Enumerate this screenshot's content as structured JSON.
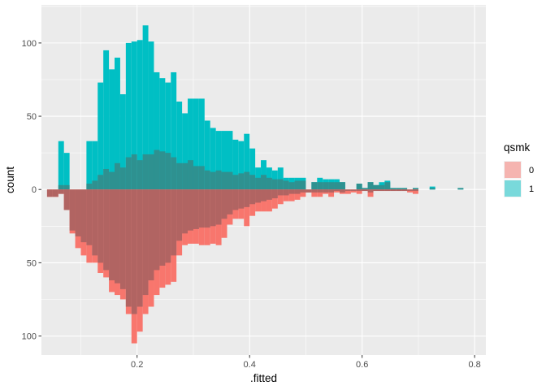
{
  "chart_data": {
    "type": "bar",
    "subtype": "mirrored-histogram",
    "title": "",
    "xlabel": ".fitted",
    "ylabel": "count",
    "xlim": [
      0.03,
      0.82
    ],
    "ylim": [
      -113,
      126
    ],
    "x_ticks": [
      0.2,
      0.4,
      0.6,
      0.8
    ],
    "x_tick_labels": [
      "0.2",
      "0.4",
      "0.6",
      "0.8"
    ],
    "y_ticks": [
      100,
      50,
      0,
      -50,
      -100
    ],
    "y_tick_labels": [
      "100",
      "50",
      "0",
      "50",
      "100"
    ],
    "grid": true,
    "bin_width": 0.01,
    "legend": {
      "title": "qsmk",
      "placement": "right",
      "entries": [
        {
          "label": "0",
          "color": "#F8766D"
        },
        {
          "label": "1",
          "color": "#00BFC4"
        }
      ]
    },
    "series": [
      {
        "name": "1",
        "direction": "up",
        "color": "#00BFC4",
        "bin_centers": [
          0.045,
          0.055,
          0.065,
          0.075,
          0.085,
          0.095,
          0.105,
          0.115,
          0.125,
          0.135,
          0.145,
          0.155,
          0.165,
          0.175,
          0.185,
          0.195,
          0.205,
          0.215,
          0.225,
          0.235,
          0.245,
          0.255,
          0.265,
          0.275,
          0.285,
          0.295,
          0.305,
          0.315,
          0.325,
          0.335,
          0.345,
          0.355,
          0.365,
          0.375,
          0.385,
          0.395,
          0.405,
          0.415,
          0.425,
          0.435,
          0.445,
          0.455,
          0.465,
          0.475,
          0.485,
          0.495,
          0.505,
          0.515,
          0.525,
          0.535,
          0.545,
          0.555,
          0.565,
          0.575,
          0.585,
          0.595,
          0.605,
          0.615,
          0.625,
          0.635,
          0.645,
          0.655,
          0.665,
          0.675,
          0.685,
          0.695,
          0.705,
          0.715,
          0.725,
          0.735,
          0.745,
          0.755,
          0.765,
          0.775,
          0.785
        ],
        "values": [
          0,
          0,
          33,
          25,
          0,
          0,
          0,
          33,
          33,
          73,
          95,
          82,
          90,
          65,
          100,
          101,
          102,
          112,
          101,
          80,
          76,
          73,
          80,
          60,
          52,
          62,
          62,
          62,
          47,
          42,
          40,
          40,
          40,
          34,
          33,
          38,
          28,
          15,
          20,
          15,
          13,
          15,
          8,
          8,
          8,
          8,
          0,
          5,
          8,
          7,
          7,
          7,
          5,
          0,
          0,
          4,
          1,
          5,
          3,
          5,
          6,
          1,
          1,
          1,
          0,
          1,
          0,
          0,
          2,
          0,
          0,
          0,
          0,
          1,
          0
        ]
      },
      {
        "name": "overlap",
        "direction": "up",
        "color": "#2E9190",
        "bin_centers": [
          0.045,
          0.055,
          0.065,
          0.075,
          0.085,
          0.095,
          0.105,
          0.115,
          0.125,
          0.135,
          0.145,
          0.155,
          0.165,
          0.175,
          0.185,
          0.195,
          0.205,
          0.215,
          0.225,
          0.235,
          0.245,
          0.255,
          0.265,
          0.275,
          0.285,
          0.295,
          0.305,
          0.315,
          0.325,
          0.335,
          0.345,
          0.355,
          0.365,
          0.375,
          0.385,
          0.395,
          0.405,
          0.415,
          0.425,
          0.435,
          0.445,
          0.455,
          0.465,
          0.475,
          0.485,
          0.495,
          0.505,
          0.515,
          0.525,
          0.535,
          0.545,
          0.555,
          0.565,
          0.575,
          0.585,
          0.595,
          0.605,
          0.615,
          0.625,
          0.635,
          0.645,
          0.655,
          0.665,
          0.675,
          0.685,
          0.695,
          0.705,
          0.715,
          0.725,
          0.735,
          0.745,
          0.755,
          0.765,
          0.775,
          0.785
        ],
        "values": [
          0,
          0,
          3,
          3,
          0,
          0,
          0,
          4,
          6,
          10,
          14,
          12,
          18,
          15,
          22,
          24,
          20,
          24,
          24,
          27,
          26,
          25,
          22,
          18,
          18,
          20,
          16,
          16,
          13,
          12,
          13,
          12,
          12,
          10,
          11,
          12,
          10,
          8,
          10,
          8,
          7,
          7,
          6,
          5,
          6,
          6,
          0,
          5,
          5,
          5,
          5,
          5,
          5,
          0,
          0,
          4,
          1,
          5,
          3,
          3,
          5,
          1,
          1,
          1,
          0,
          1,
          0,
          0,
          1,
          0,
          0,
          0,
          0,
          1,
          0
        ]
      },
      {
        "name": "0",
        "direction": "down",
        "color": "#F8766D",
        "bin_centers": [
          0.045,
          0.055,
          0.065,
          0.075,
          0.085,
          0.095,
          0.105,
          0.115,
          0.125,
          0.135,
          0.145,
          0.155,
          0.165,
          0.175,
          0.185,
          0.195,
          0.205,
          0.215,
          0.225,
          0.235,
          0.245,
          0.255,
          0.265,
          0.275,
          0.285,
          0.295,
          0.305,
          0.315,
          0.325,
          0.335,
          0.345,
          0.355,
          0.365,
          0.375,
          0.385,
          0.395,
          0.405,
          0.415,
          0.425,
          0.435,
          0.445,
          0.455,
          0.465,
          0.475,
          0.485,
          0.495,
          0.505,
          0.515,
          0.525,
          0.535,
          0.545,
          0.555,
          0.565,
          0.575,
          0.585,
          0.595,
          0.605,
          0.615,
          0.625,
          0.635,
          0.645,
          0.655,
          0.665,
          0.675,
          0.685,
          0.695,
          0.705,
          0.715,
          0.725,
          0.735,
          0.745,
          0.755,
          0.765,
          0.775,
          0.785
        ],
        "values": [
          5,
          5,
          3,
          14,
          30,
          40,
          45,
          50,
          50,
          57,
          60,
          70,
          72,
          75,
          85,
          105,
          97,
          85,
          80,
          72,
          67,
          65,
          63,
          45,
          38,
          37,
          37,
          38,
          38,
          37,
          38,
          33,
          24,
          20,
          20,
          25,
          18,
          15,
          15,
          15,
          13,
          10,
          8,
          8,
          7,
          5,
          2,
          5,
          5,
          3,
          5,
          2,
          3,
          3,
          2,
          3,
          1,
          5,
          1,
          1,
          1,
          1,
          1,
          1,
          2,
          3,
          0,
          0,
          0,
          0,
          0,
          0,
          0,
          0,
          0
        ]
      },
      {
        "name": "overlap-below",
        "direction": "down",
        "color": "#B16462",
        "bin_centers": [
          0.045,
          0.055,
          0.065,
          0.075,
          0.085,
          0.095,
          0.105,
          0.115,
          0.125,
          0.135,
          0.145,
          0.155,
          0.165,
          0.175,
          0.185,
          0.195,
          0.205,
          0.215,
          0.225,
          0.235,
          0.245,
          0.255,
          0.265,
          0.275,
          0.285,
          0.295,
          0.305,
          0.315,
          0.325,
          0.335,
          0.345,
          0.355,
          0.365,
          0.375,
          0.385,
          0.395,
          0.405,
          0.415,
          0.425,
          0.435,
          0.445,
          0.455,
          0.465,
          0.475,
          0.485,
          0.495,
          0.505,
          0.515,
          0.525,
          0.535,
          0.545,
          0.555,
          0.565,
          0.575,
          0.585,
          0.595,
          0.605,
          0.615,
          0.625,
          0.635,
          0.645,
          0.655,
          0.665,
          0.675,
          0.685,
          0.695,
          0.705,
          0.715,
          0.725,
          0.735,
          0.745,
          0.755,
          0.765,
          0.775,
          0.785
        ],
        "values": [
          5,
          5,
          3,
          14,
          28,
          32,
          36,
          38,
          45,
          50,
          55,
          62,
          64,
          68,
          80,
          85,
          80,
          72,
          62,
          55,
          52,
          50,
          45,
          35,
          30,
          28,
          27,
          26,
          26,
          25,
          24,
          20,
          17,
          14,
          13,
          12,
          10,
          9,
          8,
          7,
          6,
          4,
          4,
          3,
          3,
          2,
          2,
          2,
          2,
          2,
          2,
          1,
          2,
          1,
          1,
          1,
          1,
          2,
          1,
          1,
          1,
          1,
          1,
          1,
          1,
          1,
          0,
          0,
          0,
          0,
          0,
          0,
          0,
          0,
          0
        ]
      }
    ]
  }
}
